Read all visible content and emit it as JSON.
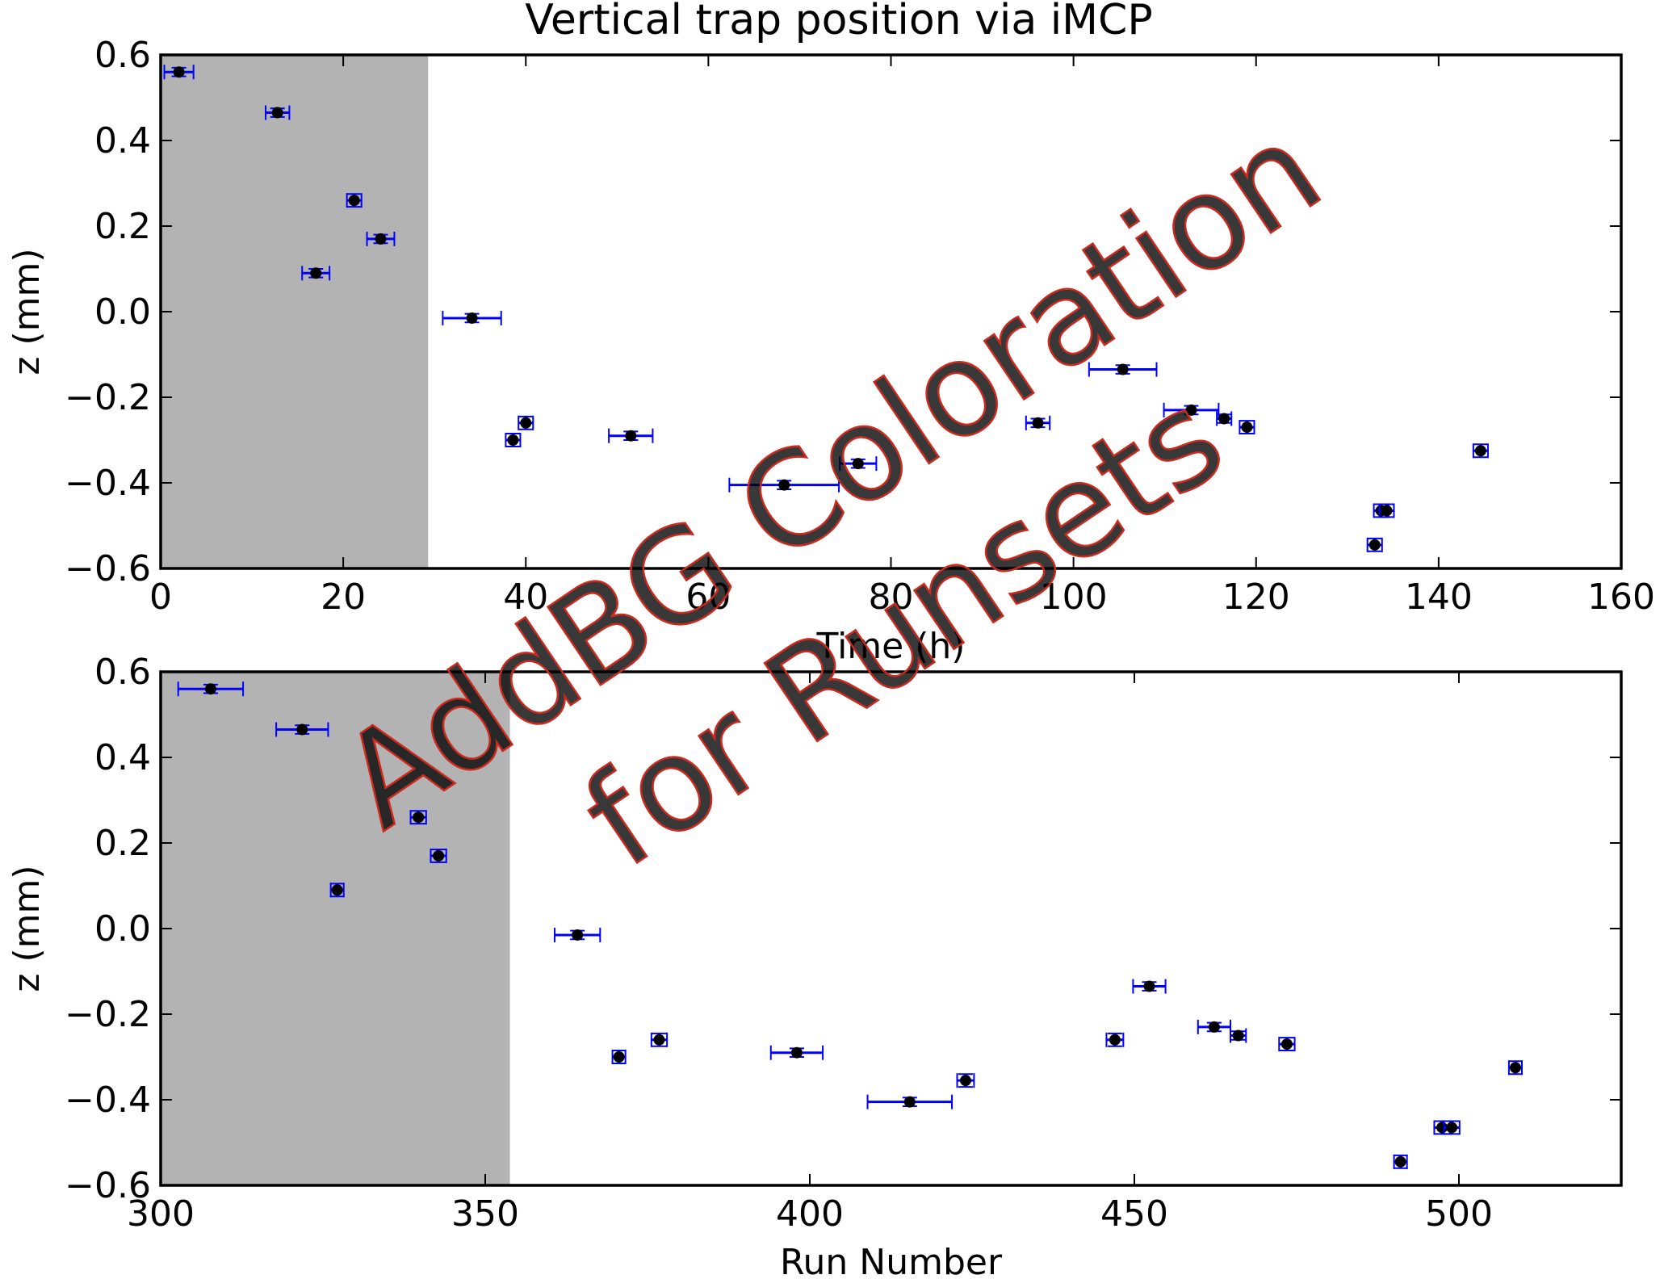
{
  "chart_data": [
    {
      "type": "scatter",
      "title": "Vertical trap position via iMCP",
      "xlabel": "Time (h)",
      "ylabel": "z (mm)",
      "xlim": [
        0,
        160
      ],
      "ylim": [
        -0.6,
        0.6
      ],
      "xticks": [
        "0",
        "20",
        "40",
        "60",
        "80",
        "100",
        "120",
        "140",
        "160"
      ],
      "yticks": [
        "0.6",
        "0.4",
        "0.2",
        "0.0",
        "−0.2",
        "−0.4",
        "−0.6"
      ],
      "shaded_region": [
        0,
        29.3
      ],
      "points": [
        {
          "x": 2.0,
          "y": 0.56,
          "xerr": 1.6,
          "yerr": 0.01
        },
        {
          "x": 12.8,
          "y": 0.465,
          "xerr": 1.3,
          "yerr": 0.01
        },
        {
          "x": 17.0,
          "y": 0.09,
          "xerr": 1.5,
          "yerr": 0.01
        },
        {
          "x": 21.2,
          "y": 0.26,
          "xerr": 0.8,
          "yerr": 0.015
        },
        {
          "x": 24.1,
          "y": 0.17,
          "xerr": 1.5,
          "yerr": 0.01
        },
        {
          "x": 34.1,
          "y": -0.015,
          "xerr": 3.2,
          "yerr": 0.01
        },
        {
          "x": 38.6,
          "y": -0.3,
          "xerr": 0.8,
          "yerr": 0.015
        },
        {
          "x": 40.0,
          "y": -0.26,
          "xerr": 0.8,
          "yerr": 0.015
        },
        {
          "x": 51.5,
          "y": -0.29,
          "xerr": 2.4,
          "yerr": 0.01
        },
        {
          "x": 68.3,
          "y": -0.405,
          "xerr": 6.0,
          "yerr": 0.01
        },
        {
          "x": 76.4,
          "y": -0.355,
          "xerr": 2.0,
          "yerr": 0.01
        },
        {
          "x": 96.1,
          "y": -0.26,
          "xerr": 1.3,
          "yerr": 0.01
        },
        {
          "x": 105.4,
          "y": -0.135,
          "xerr": 3.7,
          "yerr": 0.01
        },
        {
          "x": 112.9,
          "y": -0.23,
          "xerr": 3.0,
          "yerr": 0.01
        },
        {
          "x": 116.5,
          "y": -0.25,
          "xerr": 0.8,
          "yerr": 0.01
        },
        {
          "x": 119.0,
          "y": -0.27,
          "xerr": 0.8,
          "yerr": 0.015
        },
        {
          "x": 133.0,
          "y": -0.545,
          "xerr": 0.8,
          "yerr": 0.015
        },
        {
          "x": 133.7,
          "y": -0.465,
          "xerr": 0.8,
          "yerr": 0.015
        },
        {
          "x": 134.3,
          "y": -0.465,
          "xerr": 0.8,
          "yerr": 0.015
        },
        {
          "x": 144.6,
          "y": -0.325,
          "xerr": 0.8,
          "yerr": 0.015
        }
      ]
    },
    {
      "type": "scatter",
      "xlabel": "Run Number",
      "ylabel": "z (mm)",
      "xlim": [
        300,
        525
      ],
      "ylim": [
        -0.6,
        0.6
      ],
      "xticks": [
        "300",
        "350",
        "400",
        "450",
        "500"
      ],
      "yticks": [
        "0.6",
        "0.4",
        "0.2",
        "0.0",
        "−0.2",
        "−0.4",
        "−0.6"
      ],
      "shaded_region": [
        300,
        353.8
      ],
      "points": [
        {
          "x": 307.7,
          "y": 0.56,
          "xerr": 5.0,
          "yerr": 0.01
        },
        {
          "x": 321.8,
          "y": 0.465,
          "xerr": 4.0,
          "yerr": 0.01
        },
        {
          "x": 327.2,
          "y": 0.09,
          "xerr": 1.0,
          "yerr": 0.015
        },
        {
          "x": 339.7,
          "y": 0.26,
          "xerr": 1.2,
          "yerr": 0.015
        },
        {
          "x": 342.8,
          "y": 0.17,
          "xerr": 1.2,
          "yerr": 0.015
        },
        {
          "x": 364.2,
          "y": -0.015,
          "xerr": 3.5,
          "yerr": 0.01
        },
        {
          "x": 370.6,
          "y": -0.3,
          "xerr": 1.0,
          "yerr": 0.015
        },
        {
          "x": 376.8,
          "y": -0.26,
          "xerr": 1.2,
          "yerr": 0.015
        },
        {
          "x": 398.0,
          "y": -0.29,
          "xerr": 4.0,
          "yerr": 0.01
        },
        {
          "x": 415.4,
          "y": -0.405,
          "xerr": 6.5,
          "yerr": 0.01
        },
        {
          "x": 424.0,
          "y": -0.355,
          "xerr": 1.3,
          "yerr": 0.015
        },
        {
          "x": 447.0,
          "y": -0.26,
          "xerr": 1.3,
          "yerr": 0.015
        },
        {
          "x": 452.3,
          "y": -0.135,
          "xerr": 2.5,
          "yerr": 0.01
        },
        {
          "x": 462.3,
          "y": -0.23,
          "xerr": 2.5,
          "yerr": 0.01
        },
        {
          "x": 466.0,
          "y": -0.25,
          "xerr": 1.2,
          "yerr": 0.01
        },
        {
          "x": 473.5,
          "y": -0.27,
          "xerr": 1.2,
          "yerr": 0.015
        },
        {
          "x": 491.0,
          "y": -0.545,
          "xerr": 1.0,
          "yerr": 0.015
        },
        {
          "x": 497.4,
          "y": -0.465,
          "xerr": 1.2,
          "yerr": 0.015
        },
        {
          "x": 498.9,
          "y": -0.465,
          "xerr": 1.2,
          "yerr": 0.015
        },
        {
          "x": 508.7,
          "y": -0.325,
          "xerr": 1.0,
          "yerr": 0.015
        }
      ]
    }
  ],
  "watermark": {
    "line1": "AddBG Coloration",
    "line2": "for Runsets"
  },
  "colors": {
    "errorbar": "#0000ff",
    "marker": "#000000",
    "shade": "#b3b3b3",
    "watermark_fill": "#e3a6a6",
    "watermark_stroke": "#cc2a1e"
  }
}
